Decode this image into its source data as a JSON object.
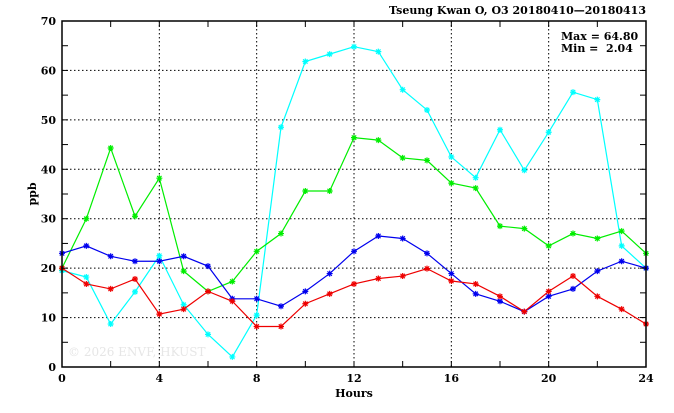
{
  "chart_data": {
    "type": "line",
    "title": "Tseung Kwan O, O3 20180410—20180413",
    "xlabel": "Hours",
    "ylabel": "ppb",
    "xlim": [
      0,
      24
    ],
    "ylim": [
      0,
      70
    ],
    "x_ticks": [
      0,
      4,
      8,
      12,
      16,
      20,
      24
    ],
    "y_ticks": [
      0,
      10,
      20,
      30,
      40,
      50,
      60,
      70
    ],
    "grid": true,
    "annotation": {
      "max_label": "Max = 64.80",
      "min_label": "Min =  2.04"
    },
    "watermark": "© 2026  ENVF, HKUST",
    "x": [
      0,
      1,
      2,
      3,
      4,
      5,
      6,
      7,
      8,
      9,
      10,
      11,
      12,
      13,
      14,
      15,
      16,
      17,
      18,
      19,
      20,
      21,
      22,
      23,
      24
    ],
    "series": [
      {
        "name": "series-cyan",
        "color": "#00ffff",
        "values": [
          19.5,
          18.2,
          8.7,
          15.2,
          22.5,
          12.6,
          6.6,
          2.04,
          10.5,
          48.5,
          61.8,
          63.3,
          64.8,
          63.8,
          56.1,
          52.0,
          42.5,
          38.3,
          48.0,
          39.8,
          47.5,
          55.6,
          54.1,
          24.5,
          20.0
        ]
      },
      {
        "name": "series-green",
        "color": "#00ee00",
        "values": [
          20.0,
          30.0,
          44.3,
          30.5,
          38.2,
          19.4,
          15.3,
          17.3,
          23.4,
          27.0,
          35.6,
          35.6,
          46.4,
          45.9,
          42.3,
          41.8,
          37.2,
          36.2,
          28.5,
          28.0,
          24.5,
          27.0,
          26.0,
          27.5,
          23.0
        ]
      },
      {
        "name": "series-blue",
        "color": "#0000ee",
        "values": [
          23.0,
          24.5,
          22.4,
          21.4,
          21.4,
          22.4,
          20.4,
          13.8,
          13.8,
          12.3,
          15.3,
          18.9,
          23.4,
          26.5,
          26.0,
          23.0,
          18.9,
          14.8,
          13.3,
          11.2,
          14.3,
          15.8,
          19.4,
          21.4,
          20.0
        ]
      },
      {
        "name": "series-red",
        "color": "#ee0000",
        "values": [
          20.0,
          16.8,
          15.8,
          17.8,
          10.7,
          11.7,
          15.3,
          13.3,
          8.2,
          8.2,
          12.8,
          14.8,
          16.8,
          17.9,
          18.4,
          19.9,
          17.4,
          16.8,
          14.3,
          11.2,
          15.3,
          18.4,
          14.3,
          11.7,
          8.7
        ]
      }
    ]
  }
}
